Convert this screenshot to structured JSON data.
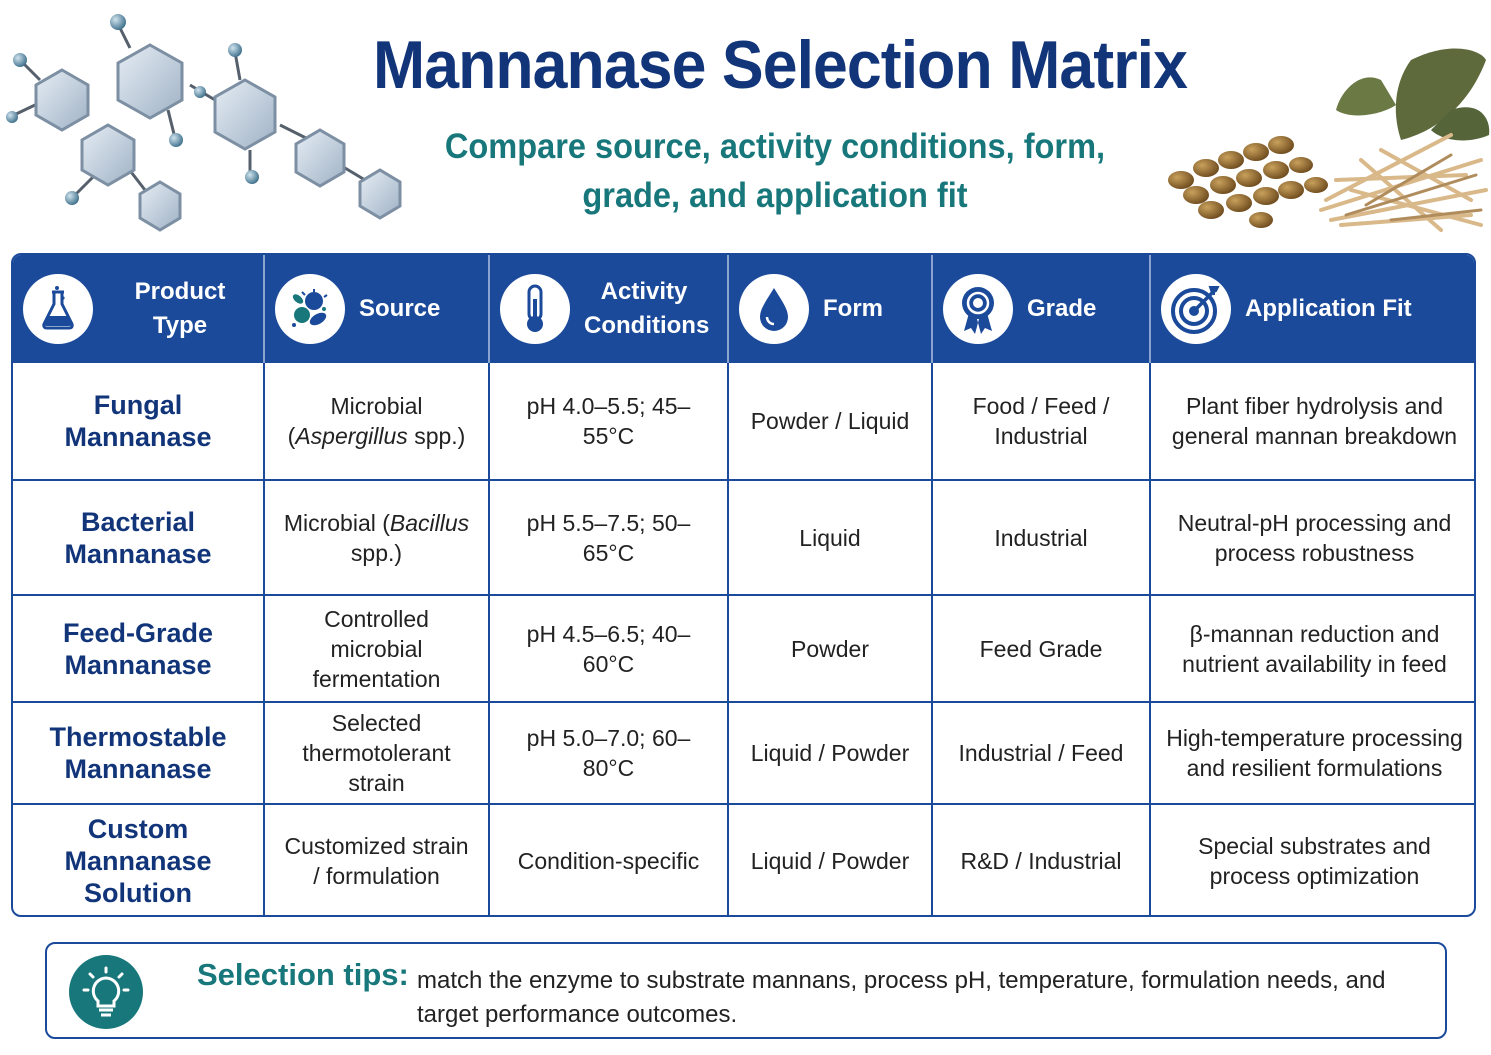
{
  "title": "Mannanase Selection Matrix",
  "subtitle": "Compare source, activity conditions, form, grade, and application fit",
  "colors": {
    "navy": "#1b4a9a",
    "title": "#12357a",
    "teal": "#17777b"
  },
  "headers": [
    {
      "label": "Product Type",
      "icon": "flask-icon"
    },
    {
      "label": "Source",
      "icon": "microbe-icon"
    },
    {
      "label": "Activity Conditions",
      "icon": "thermometer-icon"
    },
    {
      "label": "Form",
      "icon": "droplet-icon"
    },
    {
      "label": "Grade",
      "icon": "award-ribbon-icon"
    },
    {
      "label": "Application Fit",
      "icon": "target-icon"
    }
  ],
  "rows": [
    {
      "type": "Fungal Mannanase",
      "source_pre": "Microbial (",
      "source_em": "Aspergillus",
      "source_post": " spp.)",
      "activity": "pH 4.0–5.5; 45–55°C",
      "form": "Powder / Liquid",
      "grade": "Food / Feed / Industrial",
      "application": "Plant fiber hydrolysis and general mannan breakdown"
    },
    {
      "type": "Bacterial Mannanase",
      "source_pre": "Microbial (",
      "source_em": "Bacillus",
      "source_post": " spp.)",
      "activity": "pH 5.5–7.5; 50–65°C",
      "form": "Liquid",
      "grade": "Industrial",
      "application": "Neutral-pH processing and process robustness"
    },
    {
      "type": "Feed-Grade Mannanase",
      "source_pre": "Controlled microbial fermentation",
      "source_em": "",
      "source_post": "",
      "activity": "pH 4.5–6.5; 40–60°C",
      "form": "Powder",
      "grade": "Feed Grade",
      "application": "β-mannan reduction and nutrient availability in feed"
    },
    {
      "type": "Thermostable Mannanase",
      "source_pre": "Selected thermotolerant strain",
      "source_em": "",
      "source_post": "",
      "activity": "pH 5.0–7.0; 60–80°C",
      "form": "Liquid / Powder",
      "grade": "Industrial / Feed",
      "application": "High-temperature processing and resilient formulations"
    },
    {
      "type": "Custom Mannanase Solution",
      "source_pre": "Customized strain / formulation",
      "source_em": "",
      "source_post": "",
      "activity": "Condition-specific",
      "form": "Liquid / Powder",
      "grade": "R&D / Industrial",
      "application": "Special substrates and process optimization"
    }
  ],
  "tips": {
    "heading": "Selection tips:",
    "body": "match the enzyme to substrate mannans, process pH, temperature, formulation needs, and target performance outcomes.",
    "icon": "lightbulb-icon"
  }
}
